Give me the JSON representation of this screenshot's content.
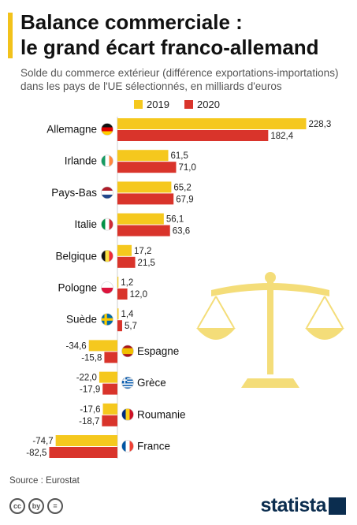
{
  "header": {
    "title_line1": "Balance commerciale :",
    "title_line2": "le grand écart franco-allemand",
    "subtitle": "Solde du commerce extérieur (différence exportations-importations) dans les pays de l'UE sélectionnés, en milliards d'euros"
  },
  "colors": {
    "accent": "#f2c21b",
    "series_2019": "#f5c81e",
    "series_2020": "#d9342b",
    "scale": "#f4dd79"
  },
  "chart_data": {
    "type": "bar",
    "orientation": "horizontal",
    "categories": [
      "Allemagne",
      "Irlande",
      "Pays-Bas",
      "Italie",
      "Belgique",
      "Pologne",
      "Suède",
      "Espagne",
      "Grèce",
      "Roumanie",
      "France"
    ],
    "flags": [
      "de",
      "ie",
      "nl",
      "it",
      "be",
      "pl",
      "se",
      "es",
      "gr",
      "ro",
      "fr"
    ],
    "series": [
      {
        "name": "2019",
        "values": [
          228.3,
          61.5,
          65.2,
          56.1,
          17.2,
          1.2,
          1.4,
          -34.6,
          -22.0,
          -17.6,
          -74.7
        ],
        "labels": [
          "228,3",
          "61,5",
          "65,2",
          "56,1",
          "17,2",
          "1,2",
          "1,4",
          "-34,6",
          "-22,0",
          "-17,6",
          "-74,7"
        ]
      },
      {
        "name": "2020",
        "values": [
          182.4,
          71.0,
          67.9,
          63.6,
          21.5,
          12.0,
          5.7,
          -15.8,
          -17.9,
          -18.7,
          -82.5
        ],
        "labels": [
          "182,4",
          "71,0",
          "67,9",
          "63,6",
          "21,5",
          "12,0",
          "5,7",
          "-15,8",
          "-17,9",
          "-18,7",
          "-82,5"
        ]
      }
    ],
    "xlim": [
      -82.5,
      228.3
    ],
    "grid": false,
    "legend_placement": "top"
  },
  "footer": {
    "source": "Source : Eurostat",
    "brand": "statista",
    "license_icons": [
      "cc",
      "by",
      "="
    ]
  }
}
